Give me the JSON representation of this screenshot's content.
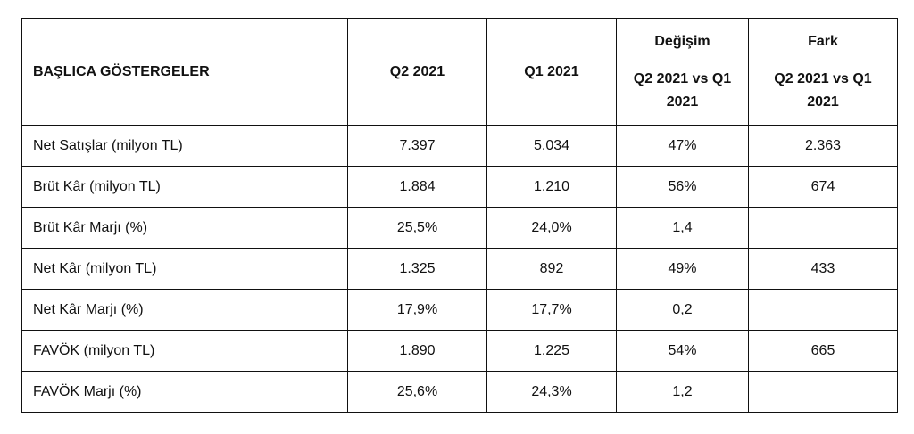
{
  "header": {
    "indicators": "BAŞLICA GÖSTERGELER",
    "q2": "Q2 2021",
    "q1": "Q1 2021",
    "change_title": "Değişim",
    "change_sub": "Q2 2021 vs Q1 2021",
    "diff_title": "Fark",
    "diff_sub": "Q2 2021 vs Q1 2021"
  },
  "rows": [
    {
      "label": "Net Satışlar (milyon TL)",
      "q2": "7.397",
      "q1": "5.034",
      "change": "47%",
      "diff": "2.363"
    },
    {
      "label": "Brüt Kâr (milyon TL)",
      "q2": "1.884",
      "q1": "1.210",
      "change": "56%",
      "diff": "674"
    },
    {
      "label": "Brüt Kâr Marjı (%)",
      "q2": "25,5%",
      "q1": "24,0%",
      "change": "1,4",
      "diff": ""
    },
    {
      "label": "Net Kâr (milyon TL)",
      "q2": "1.325",
      "q1": "892",
      "change": "49%",
      "diff": "433"
    },
    {
      "label": "Net Kâr Marjı (%)",
      "q2": "17,9%",
      "q1": "17,7%",
      "change": "0,2",
      "diff": ""
    },
    {
      "label": "FAVÖK (milyon TL)",
      "q2": "1.890",
      "q1": "1.225",
      "change": "54%",
      "diff": "665"
    },
    {
      "label": "FAVÖK Marjı (%)",
      "q2": "25,6%",
      "q1": "24,3%",
      "change": "1,2",
      "diff": ""
    }
  ]
}
